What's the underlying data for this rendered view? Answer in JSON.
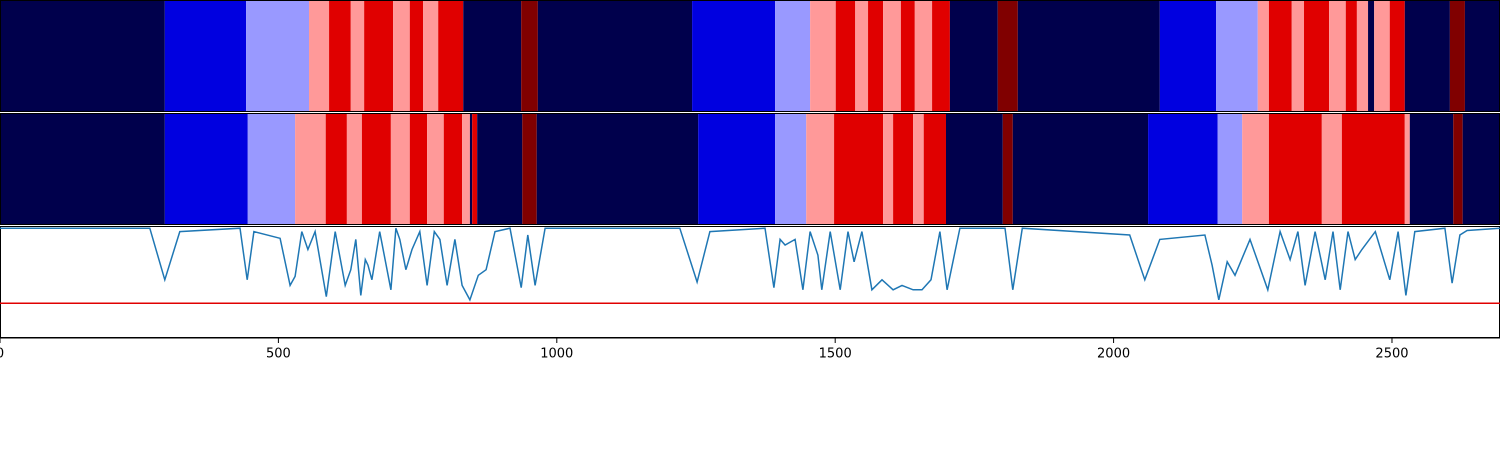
{
  "chart_data": {
    "type": "segmentation",
    "xlim": [
      0,
      2694
    ],
    "xticks": [
      0,
      500,
      1000,
      1500,
      2000,
      2500
    ],
    "palette": [
      "#00004c",
      "#0000e0",
      "#9999ff",
      "#ff9999",
      "#e00000",
      "#800000"
    ],
    "rows": [
      {
        "starts": [
          0,
          296,
          442,
          555,
          591,
          630,
          654,
          706,
          736,
          760,
          787,
          832,
          936,
          966,
          1243,
          1392,
          1455,
          1501,
          1536,
          1559,
          1586,
          1618,
          1643,
          1674,
          1706,
          1792,
          1828,
          2083,
          2184,
          2259,
          2279,
          2320,
          2342,
          2387,
          2417,
          2437,
          2457,
          2468,
          2496,
          2523,
          2604,
          2631
        ],
        "classes": [
          0,
          1,
          2,
          3,
          4,
          3,
          4,
          3,
          4,
          3,
          4,
          0,
          5,
          0,
          1,
          2,
          3,
          4,
          3,
          4,
          3,
          4,
          3,
          4,
          0,
          5,
          0,
          1,
          2,
          3,
          4,
          3,
          4,
          3,
          4,
          3,
          0,
          3,
          4,
          0,
          5,
          0
        ]
      },
      {
        "starts": [
          0,
          296,
          445,
          530,
          585,
          623,
          650,
          702,
          736,
          767,
          797,
          830,
          844,
          848,
          857,
          938,
          964,
          1254,
          1392,
          1448,
          1498,
          1586,
          1604,
          1640,
          1659,
          1699,
          1801,
          1819,
          2062,
          2187,
          2231,
          2279,
          2374,
          2410,
          2523,
          2532,
          2610,
          2627
        ],
        "classes": [
          0,
          1,
          2,
          3,
          4,
          3,
          4,
          3,
          4,
          3,
          4,
          3,
          0,
          4,
          0,
          5,
          0,
          1,
          2,
          3,
          4,
          3,
          4,
          3,
          4,
          0,
          5,
          0,
          1,
          2,
          3,
          4,
          3,
          4,
          3,
          0,
          5,
          0
        ]
      }
    ],
    "line": {
      "color": "#1f77b4",
      "ylim": [
        0,
        1
      ],
      "threshold": 0.31,
      "threshold_color": "#e00000",
      "x": [
        0,
        269,
        296,
        323,
        431,
        444,
        456,
        503,
        521,
        530,
        542,
        553,
        566,
        586,
        602,
        620,
        630,
        639,
        648,
        656,
        661,
        668,
        682,
        702,
        711,
        718,
        729,
        740,
        754,
        767,
        780,
        790,
        803,
        817,
        830,
        844,
        859,
        873,
        889,
        916,
        936,
        948,
        961,
        979,
        1221,
        1252,
        1275,
        1374,
        1390,
        1401,
        1410,
        1428,
        1442,
        1455,
        1469,
        1476,
        1491,
        1509,
        1523,
        1534,
        1548,
        1566,
        1584,
        1604,
        1620,
        1640,
        1656,
        1672,
        1688,
        1701,
        1724,
        1805,
        1819,
        1836,
        2029,
        2056,
        2083,
        2164,
        2177,
        2189,
        2204,
        2218,
        2245,
        2277,
        2299,
        2317,
        2331,
        2344,
        2362,
        2380,
        2394,
        2407,
        2421,
        2434,
        2446,
        2470,
        2496,
        2511,
        2525,
        2541,
        2595,
        2608,
        2622,
        2635,
        2694
      ],
      "values": [
        0.98,
        0.98,
        0.52,
        0.95,
        0.98,
        0.52,
        0.95,
        0.89,
        0.47,
        0.55,
        0.95,
        0.79,
        0.95,
        0.37,
        0.95,
        0.47,
        0.61,
        0.88,
        0.38,
        0.7,
        0.65,
        0.52,
        0.95,
        0.43,
        0.98,
        0.88,
        0.61,
        0.79,
        0.95,
        0.47,
        0.95,
        0.88,
        0.47,
        0.88,
        0.47,
        0.34,
        0.56,
        0.61,
        0.95,
        0.98,
        0.45,
        0.92,
        0.47,
        0.98,
        0.98,
        0.5,
        0.95,
        0.98,
        0.45,
        0.88,
        0.83,
        0.88,
        0.43,
        0.95,
        0.74,
        0.43,
        0.95,
        0.43,
        0.95,
        0.68,
        0.95,
        0.43,
        0.52,
        0.43,
        0.47,
        0.43,
        0.43,
        0.52,
        0.95,
        0.43,
        0.98,
        0.98,
        0.43,
        0.98,
        0.92,
        0.52,
        0.88,
        0.92,
        0.65,
        0.34,
        0.68,
        0.56,
        0.88,
        0.43,
        0.95,
        0.7,
        0.95,
        0.47,
        0.95,
        0.52,
        0.95,
        0.43,
        0.95,
        0.7,
        0.79,
        0.95,
        0.52,
        0.95,
        0.38,
        0.95,
        0.98,
        0.49,
        0.92,
        0.96,
        0.98
      ]
    }
  }
}
